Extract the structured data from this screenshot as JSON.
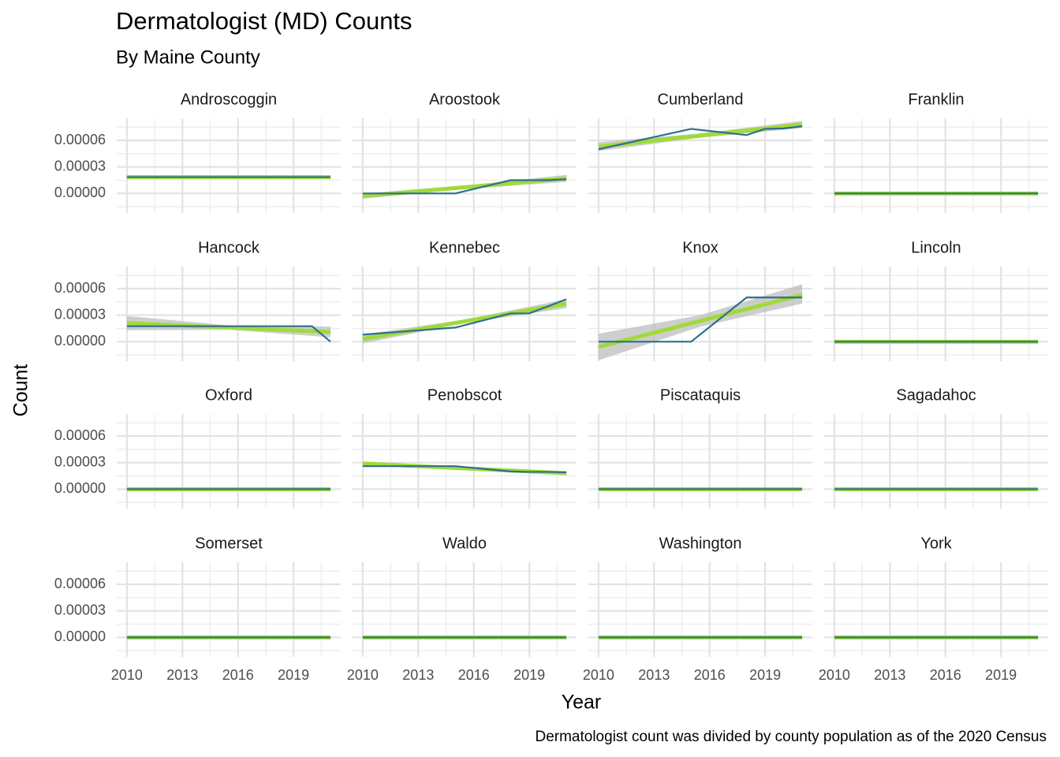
{
  "chart_data": {
    "type": "line",
    "title": "Dermatologist (MD) Counts",
    "subtitle": "By Maine County",
    "xlabel": "Year",
    "ylabel": "Count",
    "caption": "Dermatologist count was divided by county population as of the 2020 Census",
    "x": [
      2010,
      2015,
      2018,
      2019,
      2020,
      2021
    ],
    "fit_x": [
      2010,
      2015.5,
      2021
    ],
    "xlim": [
      2009.45,
      2021.55
    ],
    "xticks": [
      2010,
      2013,
      2016,
      2019
    ],
    "xminor": [
      2011.5,
      2014.5,
      2017.5,
      2020.5
    ],
    "ylim": [
      -2.2e-05,
      8.5e-05
    ],
    "yticks": [
      {
        "value": 0,
        "label": "0.00000"
      },
      {
        "value": 3e-05,
        "label": "0.00003"
      },
      {
        "value": 6e-05,
        "label": "0.00006"
      }
    ],
    "yminor": [
      -1.5e-05,
      1.5e-05,
      4.5e-05,
      7.5e-05
    ],
    "grid": true,
    "line_color": "#2e6f8e",
    "fit_color": "#a0da39",
    "band_color": "#bdbdbd",
    "panels": [
      {
        "title": "Androscoggin",
        "values": [
          1.85e-05,
          1.85e-05,
          1.85e-05,
          1.85e-05,
          1.85e-05,
          1.85e-05
        ],
        "fit": [
          1.85e-05,
          1.85e-05,
          1.85e-05
        ],
        "fit_lower": [
          1.8e-05,
          1.8e-05,
          1.8e-05
        ],
        "fit_upper": [
          1.9e-05,
          1.9e-05,
          1.9e-05
        ]
      },
      {
        "title": "Aroostook",
        "values": [
          0,
          0,
          1.5e-05,
          1.5e-05,
          1.5e-05,
          1.6e-05
        ],
        "fit": [
          -3e-06,
          7e-06,
          1.7e-05
        ],
        "fit_lower": [
          -6e-06,
          5e-06,
          1.3e-05
        ],
        "fit_upper": [
          0,
          9e-06,
          2.1e-05
        ]
      },
      {
        "title": "Cumberland",
        "values": [
          5e-05,
          7.3e-05,
          6.6e-05,
          7.3e-05,
          7.35e-05,
          7.6e-05
        ],
        "fit": [
          5.3e-05,
          6.55e-05,
          7.8e-05
        ],
        "fit_lower": [
          4.8e-05,
          6.3e-05,
          7.4e-05
        ],
        "fit_upper": [
          5.8e-05,
          6.8e-05,
          8.2e-05
        ]
      },
      {
        "title": "Franklin",
        "values": [
          0,
          0,
          0,
          0,
          0,
          0
        ],
        "fit": [
          0,
          0,
          0
        ],
        "fit_lower": [
          -5e-07,
          -5e-07,
          -5e-07
        ],
        "fit_upper": [
          5e-07,
          5e-07,
          5e-07
        ]
      },
      {
        "title": "Hancock",
        "values": [
          1.75e-05,
          1.75e-05,
          1.75e-05,
          1.75e-05,
          1.75e-05,
          0
        ],
        "fit": [
          2.1e-05,
          1.6e-05,
          1.1e-05
        ],
        "fit_lower": [
          1.3e-05,
          1.35e-05,
          5e-06
        ],
        "fit_upper": [
          2.9e-05,
          1.85e-05,
          1.7e-05
        ]
      },
      {
        "title": "Kennebec",
        "values": [
          8e-06,
          1.6e-05,
          3.2e-05,
          3.2e-05,
          4e-05,
          4.8e-05
        ],
        "fit": [
          3e-06,
          2.3e-05,
          4.3e-05
        ],
        "fit_lower": [
          -2e-06,
          2.1e-05,
          3.8e-05
        ],
        "fit_upper": [
          8e-06,
          2.5e-05,
          4.8e-05
        ]
      },
      {
        "title": "Knox",
        "values": [
          0,
          0,
          5e-05,
          5e-05,
          5e-05,
          5e-05
        ],
        "fit": [
          -6e-06,
          2.35e-05,
          5.3e-05
        ],
        "fit_lower": [
          -2.1e-05,
          1.7e-05,
          4.3e-05
        ],
        "fit_upper": [
          9e-06,
          3e-05,
          6.5e-05
        ]
      },
      {
        "title": "Lincoln",
        "values": [
          0,
          0,
          0,
          0,
          0,
          0
        ],
        "fit": [
          0,
          0,
          0
        ],
        "fit_lower": [
          -5e-07,
          -5e-07,
          -5e-07
        ],
        "fit_upper": [
          5e-07,
          5e-07,
          5e-07
        ]
      },
      {
        "title": "Oxford",
        "values": [
          0,
          0,
          0,
          0,
          0,
          0
        ],
        "fit": [
          0,
          0,
          0
        ],
        "fit_lower": [
          -5e-07,
          -5e-07,
          -5e-07
        ],
        "fit_upper": [
          5e-07,
          5e-07,
          5e-07
        ]
      },
      {
        "title": "Penobscot",
        "values": [
          2.6e-05,
          2.6e-05,
          2e-05,
          1.95e-05,
          1.95e-05,
          1.9e-05
        ],
        "fit": [
          2.9e-05,
          2.35e-05,
          1.8e-05
        ],
        "fit_lower": [
          2.7e-05,
          2.25e-05,
          1.6e-05
        ],
        "fit_upper": [
          3.1e-05,
          2.45e-05,
          2e-05
        ]
      },
      {
        "title": "Piscataquis",
        "values": [
          0,
          0,
          0,
          0,
          0,
          0
        ],
        "fit": [
          0,
          0,
          0
        ],
        "fit_lower": [
          -5e-07,
          -5e-07,
          -5e-07
        ],
        "fit_upper": [
          5e-07,
          5e-07,
          5e-07
        ]
      },
      {
        "title": "Sagadahoc",
        "values": [
          0,
          0,
          0,
          0,
          0,
          0
        ],
        "fit": [
          0,
          0,
          0
        ],
        "fit_lower": [
          -5e-07,
          -5e-07,
          -5e-07
        ],
        "fit_upper": [
          5e-07,
          5e-07,
          5e-07
        ]
      },
      {
        "title": "Somerset",
        "values": [
          0,
          0,
          0,
          0,
          0,
          0
        ],
        "fit": [
          0,
          0,
          0
        ],
        "fit_lower": [
          -5e-07,
          -5e-07,
          -5e-07
        ],
        "fit_upper": [
          5e-07,
          5e-07,
          5e-07
        ]
      },
      {
        "title": "Waldo",
        "values": [
          0,
          0,
          0,
          0,
          0,
          0
        ],
        "fit": [
          0,
          0,
          0
        ],
        "fit_lower": [
          -5e-07,
          -5e-07,
          -5e-07
        ],
        "fit_upper": [
          5e-07,
          5e-07,
          5e-07
        ]
      },
      {
        "title": "Washington",
        "values": [
          0,
          0,
          0,
          0,
          0,
          0
        ],
        "fit": [
          0,
          0,
          0
        ],
        "fit_lower": [
          -5e-07,
          -5e-07,
          -5e-07
        ],
        "fit_upper": [
          5e-07,
          5e-07,
          5e-07
        ]
      },
      {
        "title": "York",
        "values": [
          0,
          0,
          0,
          0,
          0,
          0
        ],
        "fit": [
          0,
          0,
          0
        ],
        "fit_lower": [
          -5e-07,
          -5e-07,
          -5e-07
        ],
        "fit_upper": [
          5e-07,
          5e-07,
          5e-07
        ]
      }
    ]
  }
}
